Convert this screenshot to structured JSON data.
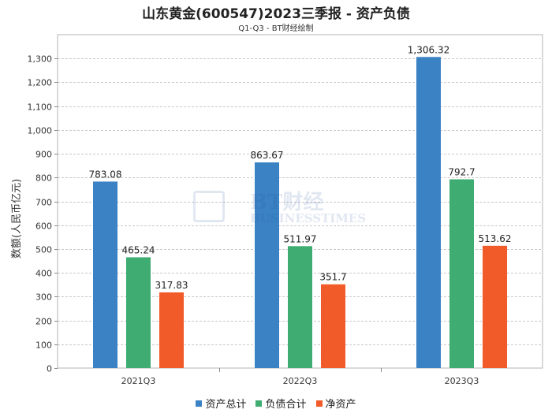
{
  "chart_data": {
    "type": "bar",
    "title": "山东黄金(600547)2023三季报 - 资产负债",
    "subtitle": "Q1-Q3 - BT财经绘制",
    "ylabel": "数额(人民币亿元)",
    "xlabel": "",
    "categories": [
      "2021Q3",
      "2022Q3",
      "2023Q3"
    ],
    "ylim": [
      0,
      1400
    ],
    "yticks": [
      0,
      100,
      200,
      300,
      400,
      500,
      600,
      700,
      800,
      900,
      1000,
      1100,
      1200,
      1300
    ],
    "ytick_labels": [
      "0",
      "100",
      "200",
      "300",
      "400",
      "500",
      "600",
      "700",
      "800",
      "900",
      "1,000",
      "1,100",
      "1,200",
      "1,300"
    ],
    "grid": true,
    "legend_position": "bottom",
    "series": [
      {
        "name": "资产总计",
        "color": "#3a82c4",
        "values": [
          783.08,
          863.67,
          1306.32
        ],
        "labels": [
          "783.08",
          "863.67",
          "1,306.32"
        ]
      },
      {
        "name": "负债合计",
        "color": "#3fac72",
        "values": [
          465.24,
          511.97,
          792.7
        ],
        "labels": [
          "465.24",
          "511.97",
          "792.7"
        ]
      },
      {
        "name": "净资产",
        "color": "#f15a29",
        "values": [
          317.83,
          351.7,
          513.62
        ],
        "labels": [
          "317.83",
          "351.7",
          "513.62"
        ]
      }
    ]
  },
  "watermark": {
    "main": "BT财经",
    "sub": "BUSINESSTIMES"
  }
}
